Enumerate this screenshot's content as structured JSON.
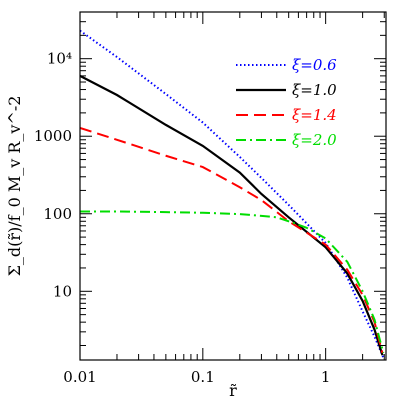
{
  "chart_data": {
    "type": "line",
    "xlabel": "r̃",
    "ylabel": "Σ_d(r̃)/f_0 M_v R_v^-2",
    "x_scale": "log",
    "y_scale": "log",
    "xlim": [
      0.01,
      3.1
    ],
    "ylim": [
      1.3,
      40000
    ],
    "grid": false,
    "legend_position": "top-right",
    "x_ticks": [
      {
        "value": 0.01,
        "label": "0.01"
      },
      {
        "value": 0.1,
        "label": "0.1"
      },
      {
        "value": 1,
        "label": "1"
      }
    ],
    "y_ticks": [
      {
        "value": 10,
        "label": "10"
      },
      {
        "value": 100,
        "label": "100"
      },
      {
        "value": 1000,
        "label": "1000"
      },
      {
        "value": 10000,
        "label": "10⁴"
      }
    ],
    "series": [
      {
        "name": "ξ=0.6",
        "color": "#0000ff",
        "style": "dotted",
        "x": [
          0.01,
          0.02,
          0.05,
          0.1,
          0.2,
          0.3,
          0.5,
          1.0,
          1.5,
          2.0,
          2.5,
          2.95
        ],
        "y": [
          23000,
          10500,
          3500,
          1500,
          540,
          290,
          130,
          42,
          15,
          5.5,
          2.6,
          1.4
        ]
      },
      {
        "name": "ξ=1.0",
        "color": "#000000",
        "style": "solid",
        "x": [
          0.01,
          0.02,
          0.05,
          0.1,
          0.2,
          0.3,
          0.5,
          1.0,
          1.5,
          2.0,
          2.5,
          2.9
        ],
        "y": [
          6000,
          3400,
          1400,
          750,
          340,
          180,
          90,
          37,
          17,
          7.5,
          3.2,
          1.5
        ]
      },
      {
        "name": "ξ=1.4",
        "color": "#ff0000",
        "style": "dashed",
        "x": [
          0.01,
          0.02,
          0.05,
          0.1,
          0.2,
          0.3,
          0.5,
          1.0,
          1.5,
          2.0,
          2.5,
          2.9
        ],
        "y": [
          1280,
          900,
          560,
          400,
          220,
          150,
          80,
          40,
          19,
          9,
          4,
          1.6
        ]
      },
      {
        "name": "ξ=2.0",
        "color": "#00dd00",
        "style": "dashdot",
        "x": [
          0.01,
          0.02,
          0.05,
          0.1,
          0.2,
          0.3,
          0.4,
          0.5,
          0.7,
          1.0,
          1.5,
          2.0,
          2.5,
          2.95
        ],
        "y": [
          107,
          107,
          105,
          103,
          99,
          94,
          90,
          80,
          66,
          48,
          24,
          10,
          4.3,
          1.6
        ]
      }
    ]
  }
}
